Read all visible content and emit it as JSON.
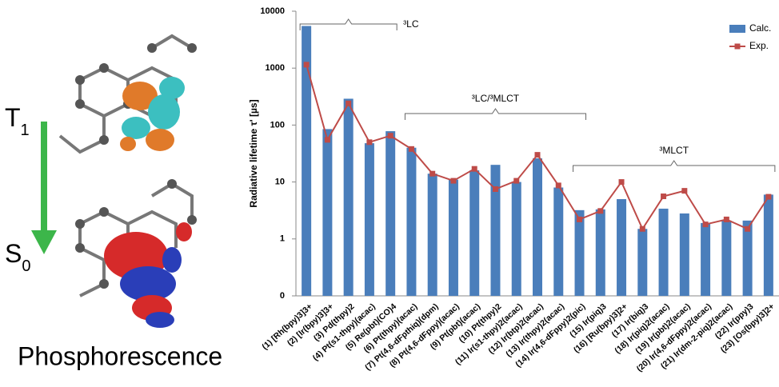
{
  "figure": {
    "upper_state": "T",
    "upper_state_sub": "1",
    "lower_state": "S",
    "lower_state_sub": "0",
    "caption": "Phosphorescence"
  },
  "chart_data": {
    "type": "bar",
    "y_label": "Radiative lifetime τ' [µs]",
    "annotations": [
      "³LC",
      "³LC/³MLCT",
      "³MLCT"
    ],
    "categories": [
      "(1) [Rh(bpy)3]3+",
      "(2) [Ir(bpy)3]3+",
      "(3) Pd(thpy)2",
      "(4) Pt(s1-thpy)(acac)",
      "(5) Re(pbt)(CO)4",
      "(6) Pt(thpy)(acac)",
      "(7) Pt(4,6-dFpthiq)(dpm)",
      "(8) Pt(4,6-dFppy)(acac)",
      "(9) Pt(pbt)(acac)",
      "(10) Pt(thpy)2",
      "(11) Ir(s1-thpy)2(acac)",
      "(12) Ir(btp)2(acac)",
      "(13) Ir(thpy)2(acac)",
      "(14) Ir(4,6-dFppy)2(pic)",
      "(15) Ir(piq)3",
      "(16) [Ru(bpy)3]2+",
      "(17) Ir(biq)3",
      "(18) Ir(piq)2(acac)",
      "(19) Ir(pbt)2(acac)",
      "(20) Ir(4,6-dFppy)2(acac)",
      "(21) Ir(dm-2-piq)2(acac)",
      "(22) Ir(ppy)3",
      "(23) [Os(bpy)3]2+"
    ],
    "series": [
      {
        "name": "Calc.",
        "type": "bar",
        "color": "#4a7ebb",
        "values": [
          5500,
          85,
          290,
          48,
          78,
          40,
          14,
          11,
          16,
          20,
          10,
          26,
          8,
          3.2,
          3.3,
          5,
          1.5,
          3.4,
          2.8,
          1.9,
          2.1,
          2.1,
          6
        ]
      },
      {
        "name": "Exp.",
        "type": "line",
        "color": "#be4b48",
        "values": [
          1150,
          55,
          240,
          50,
          65,
          38,
          14,
          10.5,
          17,
          7.5,
          10.5,
          30,
          8.7,
          2.2,
          3.1,
          10,
          1.5,
          5.6,
          7,
          1.8,
          2.2,
          1.5,
          5.5
        ]
      }
    ],
    "log_scale": true,
    "ylim": [
      0.1,
      10000
    ],
    "yticks": [
      {
        "value": 0.1,
        "label": "0"
      },
      1,
      10,
      100,
      1000,
      10000
    ],
    "legend": "upper right"
  }
}
